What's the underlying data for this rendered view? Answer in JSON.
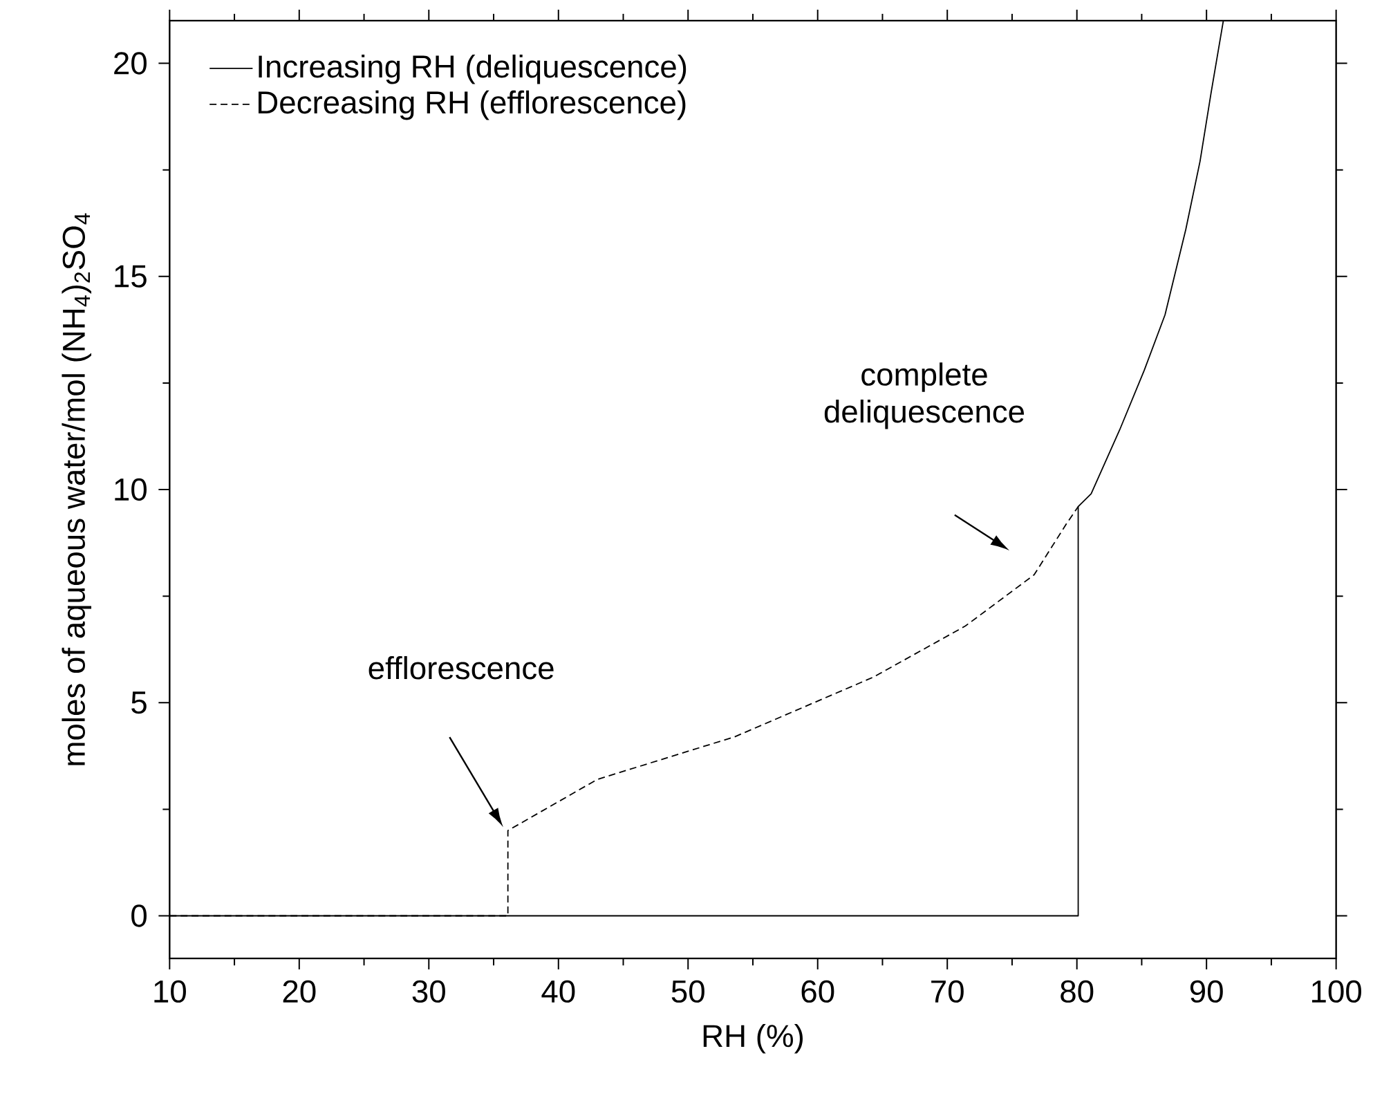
{
  "chart_data": {
    "type": "line",
    "xlabel": "RH (%)",
    "ylabel": "moles of aqueous water/mol (NH$_{4}$)$_{2}$SO$_{4}$",
    "series": [
      {
        "name": "Increasing RH (deliquescence)",
        "color": "#000000",
        "line_style": "solid",
        "x": [
          10,
          80.1,
          80.1,
          81.1,
          83.3,
          85.2,
          86.8,
          88.4,
          89.5,
          90.35,
          91.3
        ],
        "values": [
          0,
          0,
          9.6,
          9.9,
          11.4,
          12.8,
          14.1,
          16.1,
          17.7,
          19.3,
          21
        ]
      },
      {
        "name": "Decreasing RH (efflorescence)",
        "color": "#000000",
        "line_style": "dashed",
        "x": [
          10,
          36.1,
          36.1,
          43.0,
          53.6,
          64.3,
          71.4,
          76.7,
          79.2,
          80.1
        ],
        "values": [
          0,
          0,
          2.0,
          3.2,
          4.2,
          5.6,
          6.8,
          8.0,
          9.2,
          9.6
        ]
      }
    ],
    "annotations": [
      "efflorescence",
      "complete deliquescence"
    ],
    "xlim": [
      10,
      100
    ],
    "ylim": [
      -1,
      21
    ],
    "xticks": [
      10,
      20,
      30,
      40,
      50,
      60,
      70,
      80,
      90,
      100
    ],
    "yticks": [
      0,
      5,
      10,
      15,
      20
    ],
    "legend": "top left",
    "grid": false
  }
}
